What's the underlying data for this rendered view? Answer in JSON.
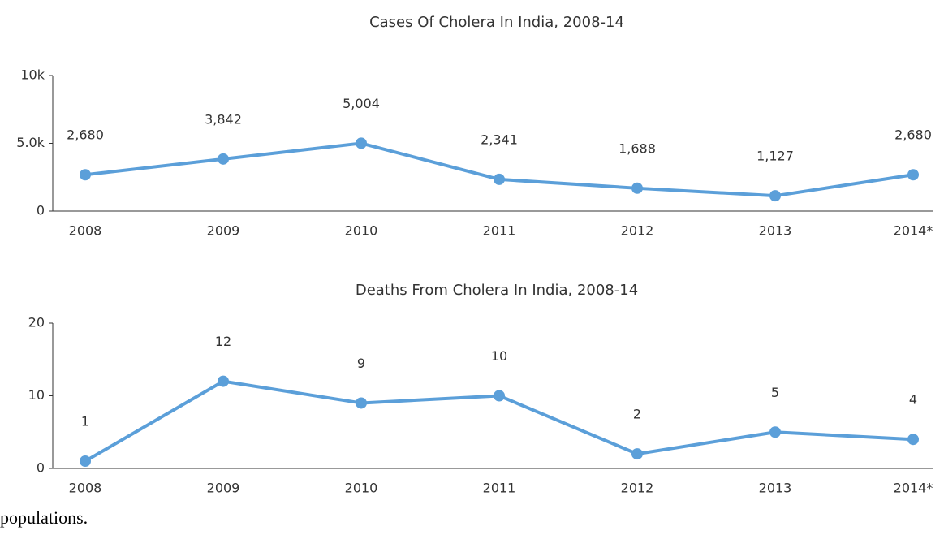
{
  "chart_data": [
    {
      "type": "line",
      "title": "Cases Of Cholera In India, 2008-14",
      "categories": [
        "2008",
        "2009",
        "2010",
        "2011",
        "2012",
        "2013",
        "2014*"
      ],
      "values": [
        2680,
        3842,
        5004,
        2341,
        1688,
        1127,
        2680
      ],
      "value_labels": [
        "2,680",
        "3,842",
        "5,004",
        "2,341",
        "1,688",
        "1,127",
        "2,680"
      ],
      "color": "#5b9fd9",
      "ylim": [
        0,
        10000
      ],
      "yticks": [
        0,
        {
          "value": 5000,
          "label": "5.0k"
        },
        {
          "value": 10000,
          "label": "10k"
        }
      ]
    },
    {
      "type": "line",
      "title": "Deaths From Cholera In India, 2008-14",
      "categories": [
        "2008",
        "2009",
        "2010",
        "2011",
        "2012",
        "2013",
        "2014*"
      ],
      "values": [
        1,
        12,
        9,
        10,
        2,
        5,
        4
      ],
      "color": "#5b9fd9",
      "ylim": [
        0,
        20
      ],
      "yticks": [
        0,
        10,
        20
      ]
    }
  ],
  "body_text": "populations."
}
